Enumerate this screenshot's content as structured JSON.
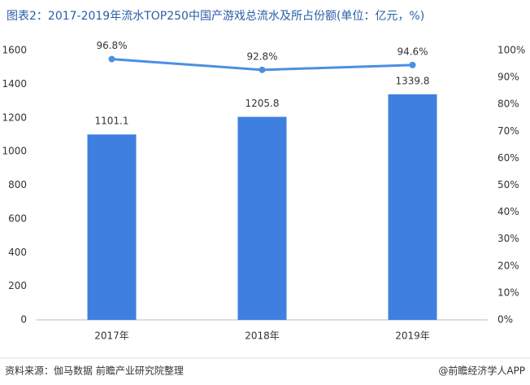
{
  "chart_data": {
    "type": "combo",
    "title": "图表2：2017-2019年流水TOP250中国产游戏总流水及所占份额(单位：亿元，%)",
    "categories": [
      "2017年",
      "2018年",
      "2019年"
    ],
    "series": [
      {
        "type": "bar",
        "color": "#3f7fe0",
        "values": [
          1101.1,
          1205.8,
          1339.8
        ]
      },
      {
        "type": "line",
        "axis": "y2",
        "color": "#4a90e2",
        "values": [
          96.8,
          92.8,
          94.6
        ],
        "value_labels": [
          "96.8%",
          "92.8%",
          "94.6%"
        ]
      }
    ],
    "ylim": [
      0,
      1600
    ],
    "yticks": [
      0,
      200,
      400,
      600,
      800,
      1000,
      1200,
      1400,
      1600
    ],
    "y2lim": [
      0,
      100
    ],
    "y2ticks": [
      {
        "value": 0,
        "label": "0%"
      },
      {
        "value": 10,
        "label": "10%"
      },
      {
        "value": 20,
        "label": "20%"
      },
      {
        "value": 30,
        "label": "30%"
      },
      {
        "value": 40,
        "label": "40%"
      },
      {
        "value": 50,
        "label": "50%"
      },
      {
        "value": 60,
        "label": "60%"
      },
      {
        "value": 70,
        "label": "70%"
      },
      {
        "value": 80,
        "label": "80%"
      },
      {
        "value": 90,
        "label": "90%"
      },
      {
        "value": 100,
        "label": "100%"
      }
    ],
    "grid": false
  },
  "footer": {
    "source": "资料来源：伽马数据 前瞻产业研究院整理",
    "credit": "@前瞻经济学人APP"
  }
}
